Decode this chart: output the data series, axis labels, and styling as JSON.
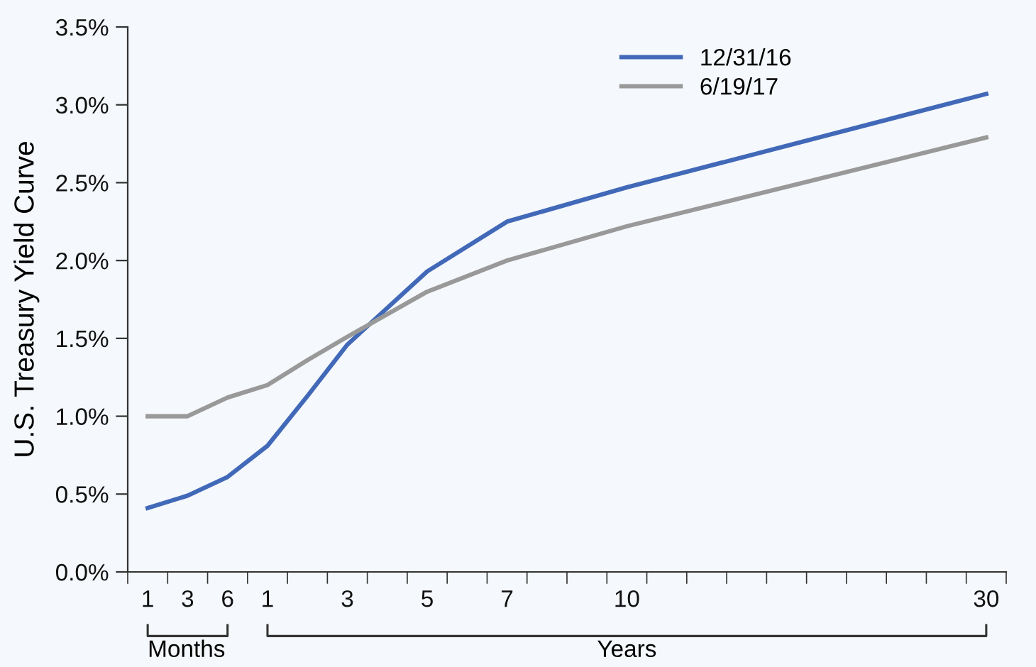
{
  "chart_data": {
    "type": "line",
    "ylabel": "U.S. Treasury Yield Curve",
    "categories": [
      "1",
      "3",
      "6",
      "1",
      null,
      "3",
      null,
      "5",
      null,
      "7",
      null,
      null,
      "10",
      null,
      null,
      null,
      null,
      null,
      null,
      null,
      null,
      "30"
    ],
    "series": [
      {
        "name": "12/31/16",
        "color": "#4169b8",
        "values": [
          0.41,
          0.49,
          0.61,
          0.81,
          1.13,
          1.46,
          null,
          1.93,
          null,
          2.25,
          null,
          null,
          2.47,
          null,
          null,
          null,
          null,
          null,
          null,
          null,
          null,
          3.07
        ]
      },
      {
        "name": "6/19/17",
        "color": "#999999",
        "values": [
          1.0,
          1.0,
          1.12,
          1.2,
          1.36,
          1.51,
          null,
          1.8,
          null,
          2.0,
          null,
          null,
          2.22,
          null,
          null,
          null,
          null,
          null,
          null,
          null,
          null,
          2.79
        ]
      }
    ],
    "ylim": [
      0,
      3.5
    ],
    "yticks": [
      {
        "value": 0,
        "label": "0.0%"
      },
      {
        "value": 0.5,
        "label": "0.5%"
      },
      {
        "value": 1,
        "label": "1.0%"
      },
      {
        "value": 1.5,
        "label": "1.5%"
      },
      {
        "value": 2,
        "label": "2.0%"
      },
      {
        "value": 2.5,
        "label": "2.5%"
      },
      {
        "value": 3,
        "label": "3.0%"
      },
      {
        "value": 3.5,
        "label": "3.5%"
      }
    ],
    "annotations": [
      "Months",
      "Years"
    ],
    "legend": "top right",
    "line_style": "solid"
  }
}
